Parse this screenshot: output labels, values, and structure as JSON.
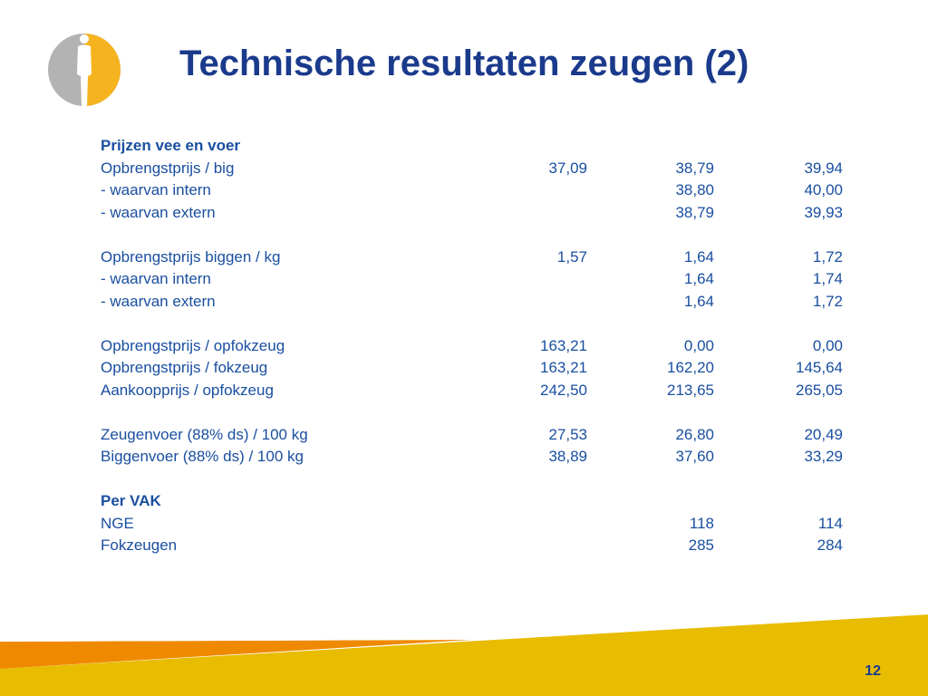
{
  "title": "Technische resultaten zeugen (2)",
  "page_number": "12",
  "colors": {
    "title": "#1a3a8c",
    "text": "#1a4fa0",
    "footer_yellow": "#e8bc00",
    "footer_orange": "#ef8a00",
    "logo_gray": "#b3b3b3"
  },
  "rows": [
    {
      "label": "Prijzen vee en voer",
      "header": true,
      "values": [
        "",
        "",
        ""
      ]
    },
    {
      "label": "Opbrengstprijs / big",
      "values": [
        "37,09",
        "38,79",
        "39,94"
      ]
    },
    {
      "label": "- waarvan intern",
      "values": [
        "",
        "38,80",
        "40,00"
      ]
    },
    {
      "label": "- waarvan extern",
      "values": [
        "",
        "38,79",
        "39,93"
      ]
    },
    {
      "spacer": true
    },
    {
      "label": "Opbrengstprijs biggen / kg",
      "values": [
        "1,57",
        "1,64",
        "1,72"
      ]
    },
    {
      "label": "- waarvan intern",
      "values": [
        "",
        "1,64",
        "1,74"
      ]
    },
    {
      "label": "- waarvan extern",
      "values": [
        "",
        "1,64",
        "1,72"
      ]
    },
    {
      "spacer": true
    },
    {
      "label": "Opbrengstprijs / opfokzeug",
      "values": [
        "163,21",
        "0,00",
        "0,00"
      ]
    },
    {
      "label": "Opbrengstprijs / fokzeug",
      "values": [
        "163,21",
        "162,20",
        "145,64"
      ]
    },
    {
      "label": "Aankoopprijs / opfokzeug",
      "values": [
        "242,50",
        "213,65",
        "265,05"
      ]
    },
    {
      "spacer": true
    },
    {
      "label": "Zeugenvoer (88% ds) / 100 kg",
      "values": [
        "27,53",
        "26,80",
        "20,49"
      ]
    },
    {
      "label": "Biggenvoer (88% ds) / 100 kg",
      "values": [
        "38,89",
        "37,60",
        "33,29"
      ]
    },
    {
      "spacer": true
    },
    {
      "label": "Per VAK",
      "header": true,
      "values": [
        "",
        "",
        ""
      ]
    },
    {
      "label": "NGE",
      "values": [
        "",
        "118",
        "114"
      ]
    },
    {
      "label": "Fokzeugen",
      "values": [
        "",
        "285",
        "284"
      ]
    }
  ]
}
